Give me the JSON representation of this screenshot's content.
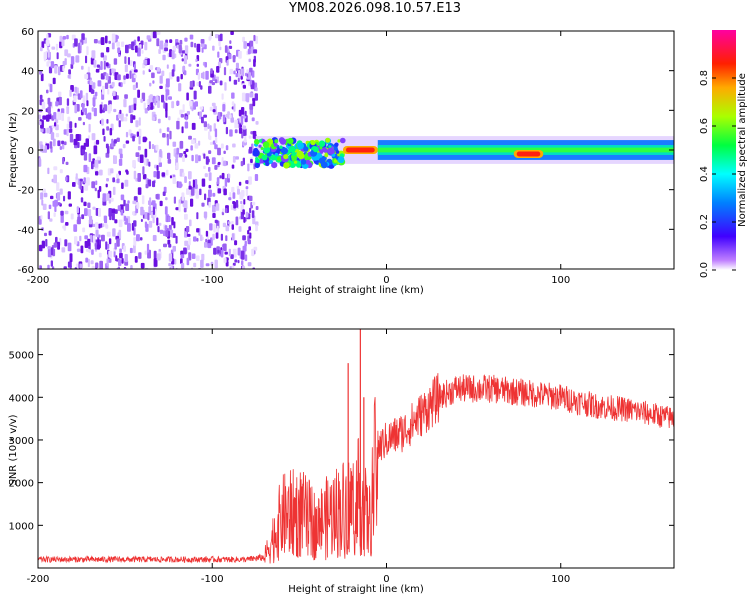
{
  "title": "YM08.2026.098.10.57.E13",
  "chart_data": [
    {
      "type": "heatmap",
      "title": "YM08.2026.098.10.57.E13",
      "xlabel": "Height of straight line (km)",
      "ylabel": "Frequency (Hz)",
      "xlim": [
        -200,
        165
      ],
      "ylim": [
        -60,
        60
      ],
      "xticks": [
        "-200",
        "-100",
        "0",
        "100"
      ],
      "yticks": [
        "-60",
        "-40",
        "-20",
        "0",
        "20",
        "40",
        "60"
      ],
      "regions": [
        {
          "name": "noise",
          "x_range": [
            -200,
            -75
          ],
          "freq_range": [
            -60,
            60
          ],
          "amplitude": "low, scattered (0.0-0.1)"
        },
        {
          "name": "onset",
          "x_range": [
            -75,
            -25
          ],
          "freq_range": [
            -8,
            5
          ],
          "amplitude": "mixed 0.1-0.5"
        },
        {
          "name": "peak-1",
          "x_range": [
            -25,
            -5
          ],
          "freq_center": 0,
          "amplitude": 0.95
        },
        {
          "name": "band",
          "x_range": [
            -5,
            165
          ],
          "freq_range": [
            -5,
            5
          ],
          "amplitude": "0.4-0.6"
        },
        {
          "name": "peak-2",
          "x_range": [
            73,
            90
          ],
          "freq_center": -2,
          "amplitude": 0.95
        }
      ],
      "colorbar": {
        "label": "Normalized spectral amplitude",
        "range": [
          0.0,
          1.0
        ],
        "ticks": [
          "0.0",
          "0.2",
          "0.4",
          "0.6",
          "0.8"
        ]
      }
    },
    {
      "type": "line",
      "xlabel": "Height of straight line (km)",
      "ylabel": "SNR (10 * v/v)",
      "xlim": [
        -200,
        165
      ],
      "ylim": [
        0,
        5600
      ],
      "xticks": [
        "-200",
        "-100",
        "0",
        "100"
      ],
      "yticks": [
        "1000",
        "2000",
        "3000",
        "4000",
        "5000"
      ],
      "series": [
        {
          "name": "SNR",
          "color": "#ee3333",
          "envelope_x": [
            -200,
            -80,
            -70,
            -60,
            -50,
            -40,
            -30,
            -20,
            -15,
            -10,
            -5,
            0,
            10,
            20,
            30,
            40,
            60,
            80,
            100,
            120,
            140,
            165
          ],
          "envelope_y": [
            200,
            200,
            250,
            1200,
            1300,
            1000,
            1300,
            1500,
            1700,
            1000,
            2800,
            3000,
            3200,
            3600,
            4000,
            4200,
            4200,
            4100,
            4000,
            3800,
            3700,
            3500
          ],
          "spikes": [
            {
              "x": -22,
              "y": 4800
            },
            {
              "x": -15,
              "y": 5600
            },
            {
              "x": -13,
              "y": 4000
            }
          ]
        }
      ]
    }
  ]
}
